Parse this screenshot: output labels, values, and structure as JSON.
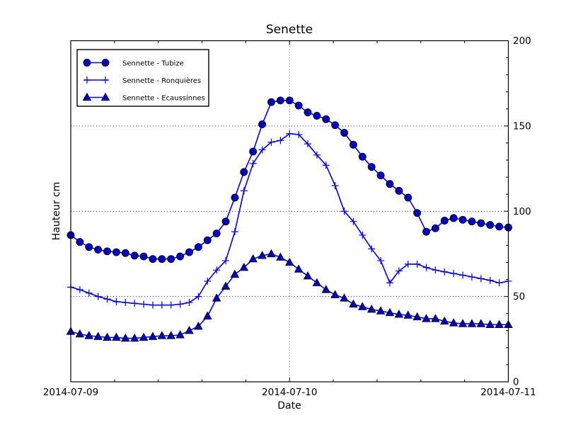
{
  "chart_data": {
    "type": "line",
    "title": "Senette",
    "xlabel": "Date",
    "ylabel": "Hauteur cm",
    "ylim": [
      0,
      200
    ],
    "yticks": [
      0,
      50,
      100,
      150,
      200
    ],
    "ytick_side": "right",
    "y_minor_tick_step": 10,
    "xticks": [
      "2014-07-09",
      "2014-07-10",
      "2014-07-11"
    ],
    "x_minor_divisions_per_day": 5,
    "grid": true,
    "grid_style": "dotted",
    "legend_position": "upper left",
    "x_unit": "hours since 2014-07-09 00:00",
    "x": [
      0,
      1,
      2,
      3,
      4,
      5,
      6,
      7,
      8,
      9,
      10,
      11,
      12,
      13,
      14,
      15,
      16,
      17,
      18,
      19,
      20,
      21,
      22,
      23,
      24,
      25,
      26,
      27,
      28,
      29,
      30,
      31,
      32,
      33,
      34,
      35,
      36,
      37,
      38,
      39,
      40,
      41,
      42,
      43,
      44,
      45,
      46,
      47,
      48
    ],
    "series": [
      {
        "name": "Sennette - Tubize",
        "marker": "circle",
        "values": [
          86,
          82,
          79,
          77.5,
          76.5,
          76,
          75.5,
          74,
          73.5,
          72,
          72,
          72,
          73.5,
          76,
          79,
          83,
          87,
          94,
          108,
          123,
          135,
          151,
          164,
          165,
          165,
          162,
          158,
          156,
          154,
          150.5,
          146,
          139,
          132,
          126,
          121,
          116,
          112,
          108,
          99,
          88,
          90,
          94.5,
          96,
          95,
          94,
          93,
          92,
          91,
          90.5
        ]
      },
      {
        "name": "Sennette - Ronquières",
        "marker": "plus",
        "values": [
          55.5,
          54,
          52,
          50,
          48.5,
          47,
          46.5,
          46,
          45.5,
          45,
          45,
          45,
          45.5,
          46.5,
          50,
          59,
          65.5,
          71,
          88,
          112,
          128,
          136,
          140.5,
          141.5,
          145.5,
          145,
          139.5,
          133,
          127,
          115,
          100,
          94,
          86,
          78,
          71,
          58,
          65,
          69,
          69,
          67,
          65.5,
          64.5,
          63.5,
          62.5,
          61.5,
          60.5,
          59.5,
          58,
          59
        ]
      },
      {
        "name": "Sennette - Ecaussinnes",
        "marker": "triangle",
        "values": [
          29.5,
          28,
          27,
          26.5,
          26,
          26,
          25.5,
          25.5,
          26,
          26.5,
          27,
          27,
          27.5,
          30,
          32.5,
          38.5,
          49,
          56,
          63,
          67,
          72,
          74,
          75,
          73,
          70,
          66,
          62,
          58,
          54,
          51,
          49,
          45.5,
          44,
          42.5,
          41.5,
          40.5,
          39.5,
          39,
          38,
          37,
          37,
          35.5,
          34.5,
          34,
          34,
          34,
          33.5,
          33.5,
          33.5
        ]
      }
    ],
    "colors": {
      "line": "#0000e6",
      "marker_fill": "#0000cc",
      "marker_edge": "#000000",
      "grid": "#333333",
      "axis": "#000000",
      "background": "#ffffff"
    }
  }
}
